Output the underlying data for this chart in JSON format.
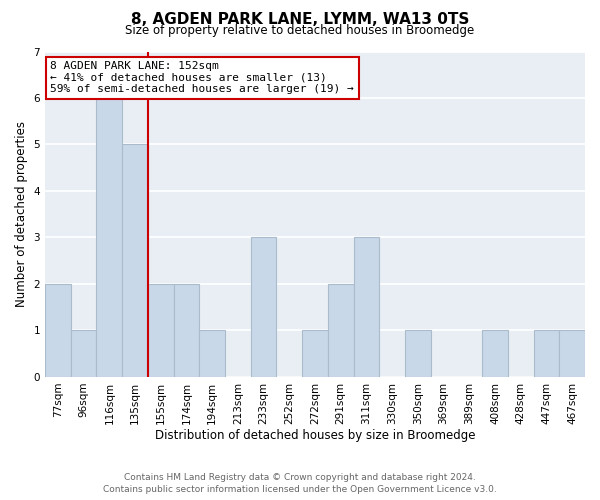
{
  "title": "8, AGDEN PARK LANE, LYMM, WA13 0TS",
  "subtitle": "Size of property relative to detached houses in Broomedge",
  "xlabel": "Distribution of detached houses by size in Broomedge",
  "ylabel": "Number of detached properties",
  "footnote1": "Contains HM Land Registry data © Crown copyright and database right 2024.",
  "footnote2": "Contains public sector information licensed under the Open Government Licence v3.0.",
  "annotation_line1": "8 AGDEN PARK LANE: 152sqm",
  "annotation_line2": "← 41% of detached houses are smaller (13)",
  "annotation_line3": "59% of semi-detached houses are larger (19) →",
  "bar_labels": [
    "77sqm",
    "96sqm",
    "116sqm",
    "135sqm",
    "155sqm",
    "174sqm",
    "194sqm",
    "213sqm",
    "233sqm",
    "252sqm",
    "272sqm",
    "291sqm",
    "311sqm",
    "330sqm",
    "350sqm",
    "369sqm",
    "389sqm",
    "408sqm",
    "428sqm",
    "447sqm",
    "467sqm"
  ],
  "bar_values": [
    2,
    1,
    6,
    5,
    2,
    2,
    1,
    0,
    3,
    0,
    1,
    2,
    3,
    0,
    1,
    0,
    0,
    1,
    0,
    1,
    1
  ],
  "bar_color": "#c8d8e8",
  "bar_edge_color": "#aabccc",
  "subject_bar_index": 3,
  "subject_line_color": "#cc0000",
  "ylim": [
    0,
    7
  ],
  "yticks": [
    0,
    1,
    2,
    3,
    4,
    5,
    6,
    7
  ],
  "background_color": "#ffffff",
  "plot_bg_color": "#e8eef4",
  "annotation_box_color": "#ffffff",
  "annotation_box_edge": "#cc0000",
  "grid_color": "#ffffff",
  "title_fontsize": 11,
  "subtitle_fontsize": 8.5,
  "xlabel_fontsize": 8.5,
  "ylabel_fontsize": 8.5,
  "tick_fontsize": 7.5,
  "annotation_fontsize": 8,
  "footnote_fontsize": 6.5
}
